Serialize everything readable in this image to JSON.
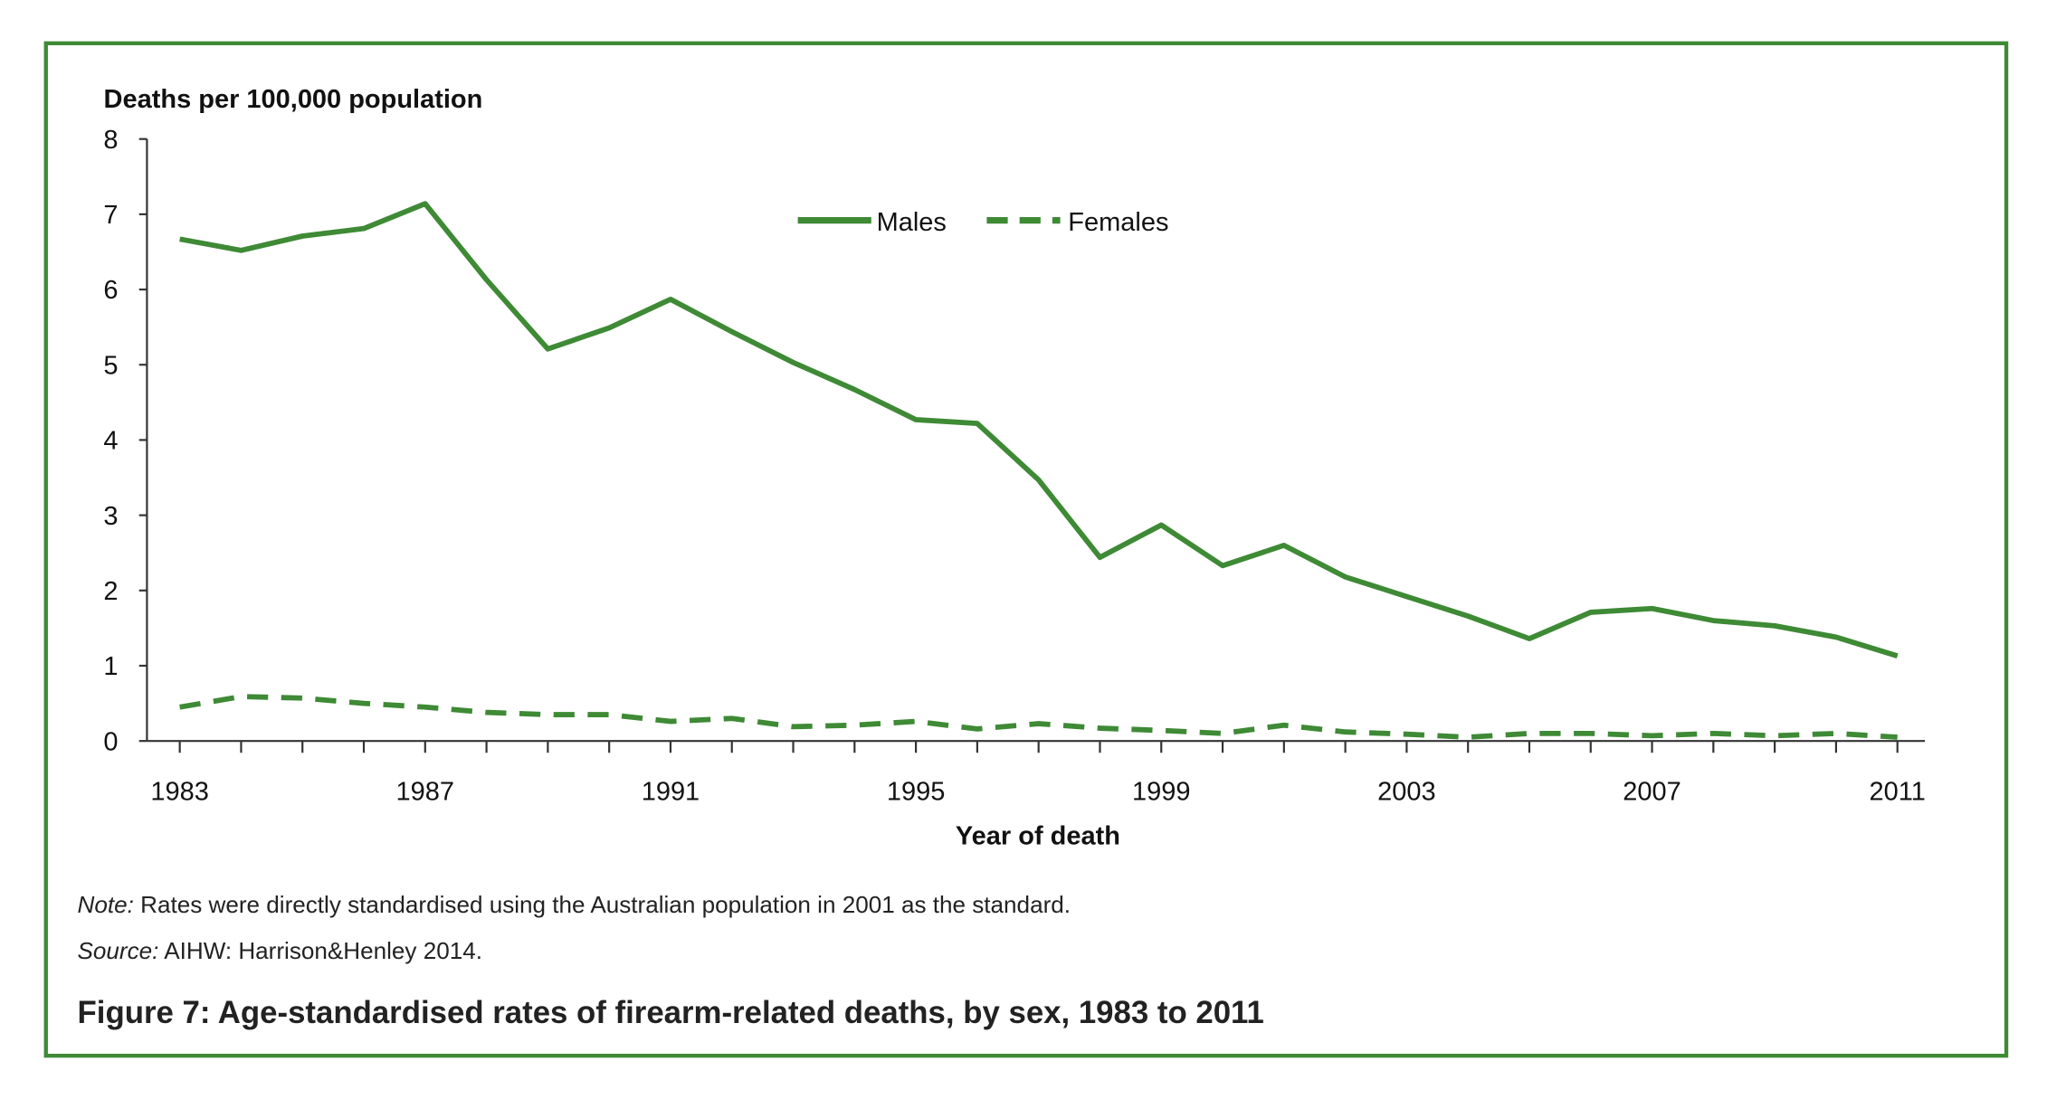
{
  "chart_data": {
    "type": "line",
    "title": "Figure 7: Age-standardised rates of firearm-related deaths, by sex, 1983 to 2011",
    "xlabel": "Year of death",
    "ylabel": "Deaths per 100,000 population",
    "ylim": [
      0,
      8
    ],
    "xlim": [
      1983,
      2011
    ],
    "yticks": [
      "0",
      "1",
      "2",
      "3",
      "4",
      "5",
      "6",
      "7",
      "8"
    ],
    "xtick_labels": [
      "1983",
      "1987",
      "1991",
      "1995",
      "1999",
      "2003",
      "2007",
      "2011"
    ],
    "grid": false,
    "legend_position": "top-center",
    "color": "#3e8a35",
    "x": [
      1983,
      1984,
      1985,
      1986,
      1987,
      1988,
      1989,
      1990,
      1991,
      1992,
      1993,
      1994,
      1995,
      1996,
      1997,
      1998,
      1999,
      2000,
      2001,
      2002,
      2003,
      2004,
      2005,
      2006,
      2007,
      2008,
      2009,
      2010,
      2011
    ],
    "series": [
      {
        "name": "Males",
        "style": "solid",
        "values": [
          6.67,
          6.52,
          6.71,
          6.81,
          7.14,
          6.13,
          5.21,
          5.49,
          5.87,
          5.44,
          5.03,
          4.67,
          4.27,
          4.22,
          3.47,
          2.44,
          2.87,
          2.33,
          2.6,
          2.18,
          1.92,
          1.66,
          1.36,
          1.71,
          1.76,
          1.6,
          1.53,
          1.38,
          1.13
        ]
      },
      {
        "name": "Females",
        "style": "dashed",
        "values": [
          0.45,
          0.59,
          0.57,
          0.5,
          0.45,
          0.38,
          0.35,
          0.35,
          0.26,
          0.3,
          0.19,
          0.21,
          0.26,
          0.16,
          0.23,
          0.17,
          0.14,
          0.1,
          0.21,
          0.12,
          0.09,
          0.05,
          0.1,
          0.1,
          0.07,
          0.1,
          0.07,
          0.1,
          0.05
        ]
      }
    ]
  },
  "notes": {
    "note_label": "Note:",
    "note_text": " Rates were directly standardised using the Australian population in 2001 as the standard.",
    "source_label": "Source:",
    "source_text": " AIHW: Harrison&Henley 2014."
  }
}
